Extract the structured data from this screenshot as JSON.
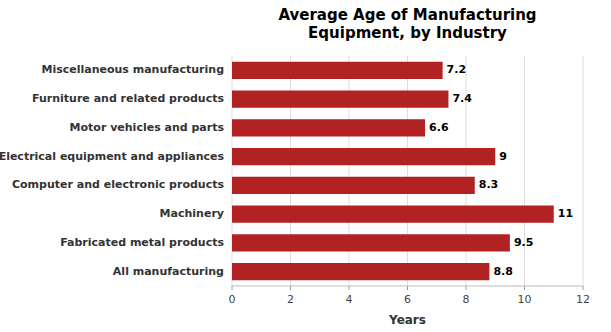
{
  "chart_data": {
    "type": "bar",
    "orientation": "horizontal",
    "title": "Average Age of Manufacturing\nEquipment, by Industry",
    "categories": [
      "All manufacturing",
      "Fabricated metal products",
      "Machinery",
      "Computer and electronic products",
      "Electrical equipment and appliances",
      "Motor vehicles and parts",
      "Furniture and related products",
      "Miscellaneous manufacturing"
    ],
    "values": [
      8.8,
      9.5,
      11,
      8.3,
      9,
      6.6,
      7.4,
      7.2
    ],
    "color": "#b22222",
    "xlabel": "Years",
    "xlim": [
      0,
      12
    ],
    "xticks": [
      0,
      2,
      4,
      6,
      8,
      10,
      12
    ],
    "grid": true,
    "data_labels": true
  }
}
